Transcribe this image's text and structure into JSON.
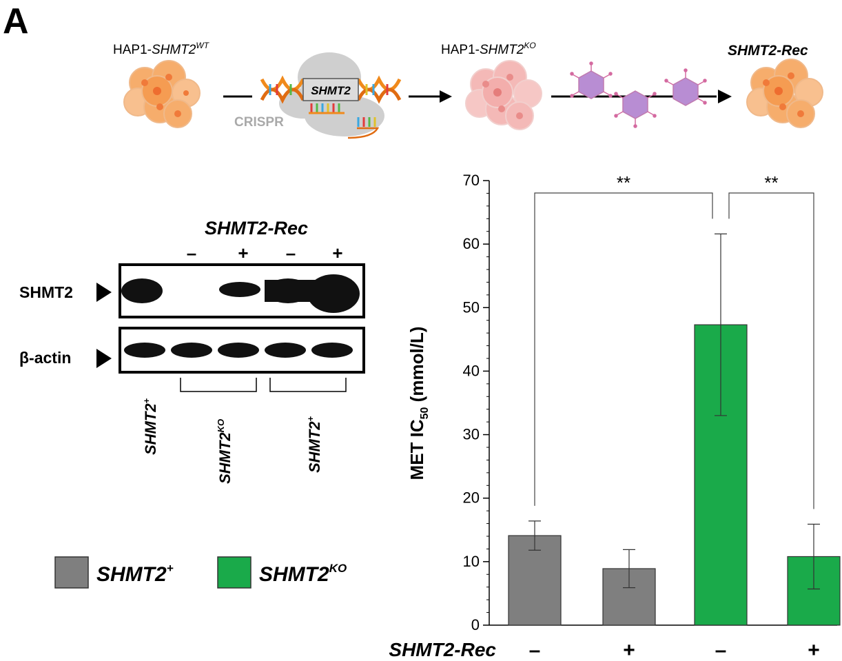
{
  "panel_label": "A",
  "schematic": {
    "wt_label": "HAP1-",
    "wt_gene": "SHMT2",
    "wt_sup": "WT",
    "gene_box": "SHMT2",
    "crispr": "CRISPR",
    "ko_label": "HAP1-",
    "ko_gene": "SHMT2",
    "ko_sup": "KO",
    "rec_label": "SHMT2-Rec"
  },
  "western": {
    "title": "SHMT2-Rec",
    "signs": [
      "–",
      "+",
      "–",
      "+"
    ],
    "row1_label": "SHMT2",
    "row2_label": "β-actin",
    "lanes": [
      {
        "gene": "SHMT2",
        "sup": "+"
      },
      {
        "gene": "SHMT2",
        "sup": "KO"
      },
      {
        "gene": "SHMT2",
        "sup": "+"
      }
    ]
  },
  "legend": [
    {
      "gene": "SHMT2",
      "sup": "+",
      "color": "#7f7f7f"
    },
    {
      "gene": "SHMT2",
      "sup": "KO",
      "color": "#1aaa4a"
    }
  ],
  "chart_data": {
    "type": "bar",
    "ylabel_main": "MET IC",
    "ylabel_sub": "50",
    "ylabel_unit": " (mmol/L)",
    "ylim": [
      0,
      70
    ],
    "yticks": [
      "0",
      "10",
      "20",
      "30",
      "40",
      "50",
      "60",
      "70"
    ],
    "xrow_label": "SHMT2-Rec",
    "bars": [
      {
        "sign": "–",
        "value": 14.1,
        "err": 2.3,
        "color": "#7f7f7f"
      },
      {
        "sign": "+",
        "value": 8.9,
        "err": 3.0,
        "color": "#7f7f7f"
      },
      {
        "sign": "–",
        "value": 47.3,
        "err": 14.3,
        "color": "#1aaa4a"
      },
      {
        "sign": "+",
        "value": 10.8,
        "err": 5.1,
        "color": "#1aaa4a"
      }
    ],
    "significance": [
      {
        "from": 0,
        "to": 2,
        "label": "**"
      },
      {
        "from": 2,
        "to": 3,
        "label": "**"
      }
    ]
  }
}
